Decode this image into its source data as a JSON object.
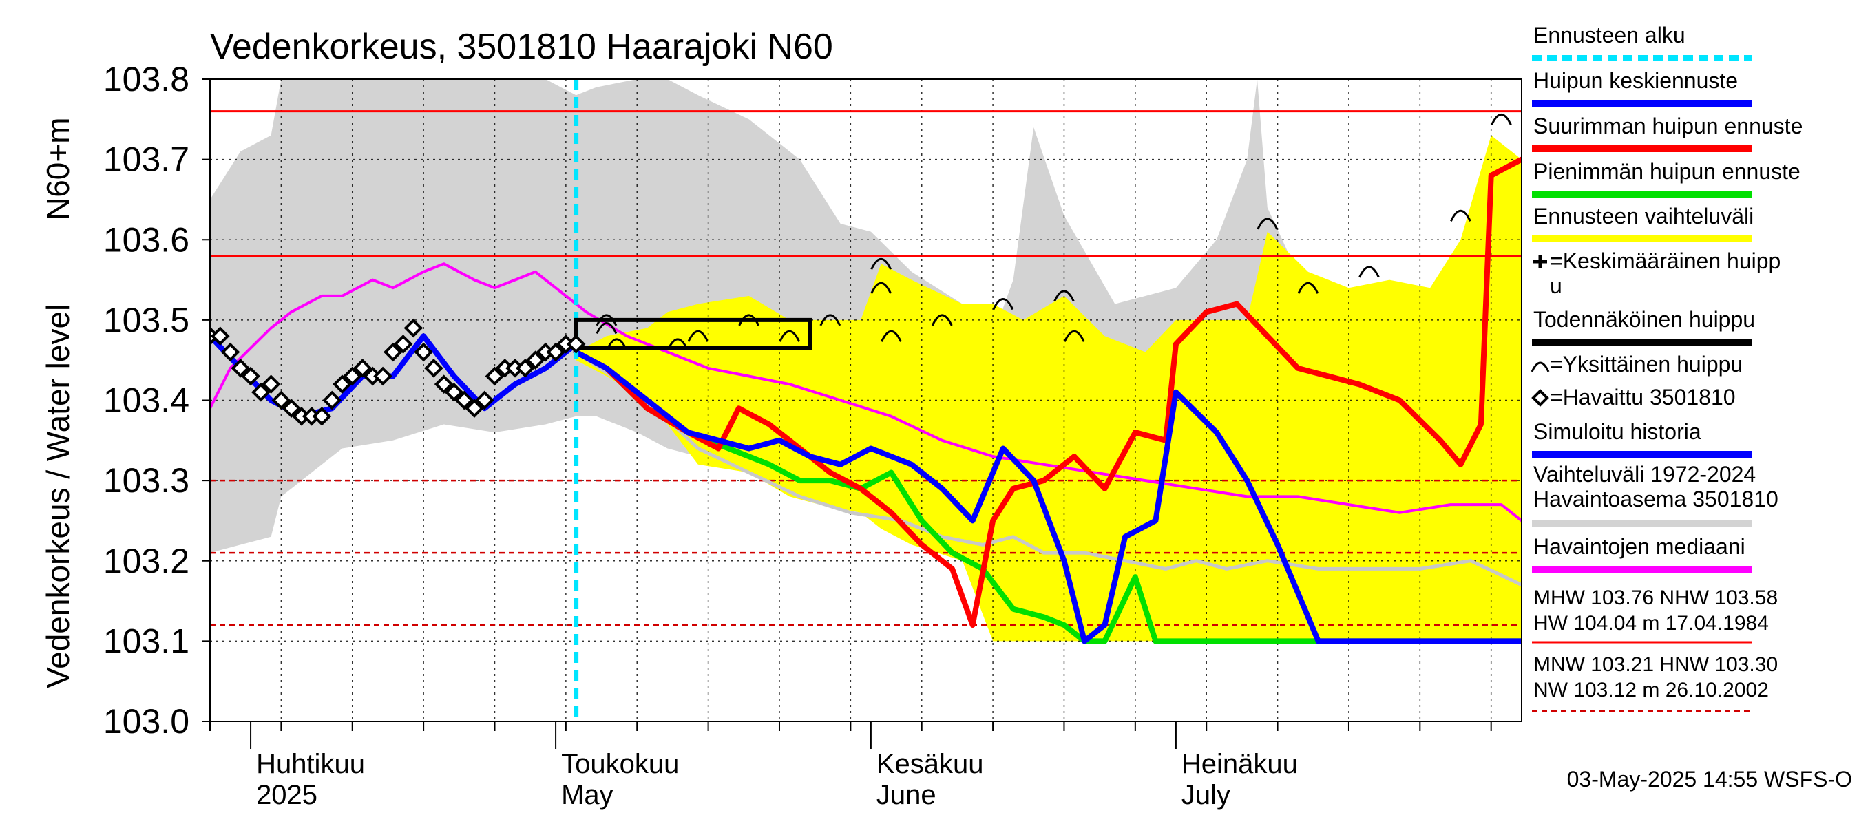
{
  "chart_data": {
    "type": "line",
    "title": "Vedenkorkeus, 3501810 Haarajoki N60",
    "ylabel_left": "Vedenkorkeus / Water level",
    "ylabel_unit": "N60+m",
    "ylim": [
      103.0,
      103.8
    ],
    "yticks": [
      "103.0",
      "103.1",
      "103.2",
      "103.3",
      "103.4",
      "103.5",
      "103.6",
      "103.7",
      "103.8"
    ],
    "xrange": [
      "2025-03-28",
      "2025-08-04"
    ],
    "month_labels": [
      {
        "date": "2025-04-01",
        "fi": "Huhtikuu",
        "en": "2025"
      },
      {
        "date": "2025-05-01",
        "fi": "Toukokuu",
        "en": "May"
      },
      {
        "date": "2025-06-01",
        "fi": "Kesäkuu",
        "en": "June"
      },
      {
        "date": "2025-07-01",
        "fi": "Heinäkuu",
        "en": "July"
      }
    ],
    "forecast_start": "2025-05-03",
    "reference_lines": [
      {
        "name": "MHW",
        "value": 103.76,
        "style": "solid",
        "color": "#ff0000"
      },
      {
        "name": "NHW",
        "value": 103.58,
        "style": "solid",
        "color": "#ff0000"
      },
      {
        "name": "HNW",
        "value": 103.3,
        "style": "dashed",
        "color": "#d00000"
      },
      {
        "name": "MNW",
        "value": 103.21,
        "style": "dashed",
        "color": "#d00000"
      },
      {
        "name": "NW",
        "value": 103.12,
        "style": "dashed",
        "color": "#d00000"
      }
    ],
    "probable_peak_box": {
      "x0": "2025-05-03",
      "x1": "2025-05-26",
      "y0": 103.465,
      "y1": 103.5
    },
    "observed": {
      "name": "Havaittu 3501810",
      "x": [
        "2025-03-28",
        "2025-03-29",
        "2025-03-30",
        "2025-03-31",
        "2025-04-01",
        "2025-04-02",
        "2025-04-03",
        "2025-04-04",
        "2025-04-05",
        "2025-04-06",
        "2025-04-07",
        "2025-04-08",
        "2025-04-09",
        "2025-04-10",
        "2025-04-11",
        "2025-04-12",
        "2025-04-13",
        "2025-04-14",
        "2025-04-15",
        "2025-04-16",
        "2025-04-17",
        "2025-04-18",
        "2025-04-19",
        "2025-04-20",
        "2025-04-21",
        "2025-04-22",
        "2025-04-23",
        "2025-04-24",
        "2025-04-25",
        "2025-04-26",
        "2025-04-27",
        "2025-04-28",
        "2025-04-29",
        "2025-04-30",
        "2025-05-01",
        "2025-05-02",
        "2025-05-03"
      ],
      "y": [
        103.48,
        103.48,
        103.46,
        103.44,
        103.43,
        103.41,
        103.42,
        103.4,
        103.39,
        103.38,
        103.38,
        103.38,
        103.4,
        103.42,
        103.43,
        103.44,
        103.43,
        103.43,
        103.46,
        103.47,
        103.49,
        103.46,
        103.44,
        103.42,
        103.41,
        103.4,
        103.39,
        103.4,
        103.43,
        103.44,
        103.44,
        103.44,
        103.45,
        103.46,
        103.46,
        103.47,
        103.47
      ]
    },
    "peak_marks": {
      "name": "Yksittäinen huippu",
      "x": [
        "2025-05-06",
        "2025-05-06",
        "2025-05-07",
        "2025-05-13",
        "2025-05-15",
        "2025-05-20",
        "2025-05-24",
        "2025-05-28",
        "2025-06-02",
        "2025-06-02",
        "2025-06-03",
        "2025-06-08",
        "2025-06-14",
        "2025-06-20",
        "2025-06-21",
        "2025-07-10",
        "2025-07-14",
        "2025-07-20",
        "2025-07-29",
        "2025-08-02"
      ],
      "y": [
        103.5,
        103.49,
        103.47,
        103.47,
        103.48,
        103.5,
        103.48,
        103.5,
        103.57,
        103.54,
        103.48,
        103.5,
        103.52,
        103.53,
        103.48,
        103.62,
        103.54,
        103.56,
        103.63,
        103.75
      ]
    },
    "series": [
      {
        "name": "Vaihteluväli 1972-2024",
        "kind": "band",
        "color": "#d3d3d3",
        "x": [
          "2025-03-28",
          "2025-03-31",
          "2025-04-03",
          "2025-04-04",
          "2025-04-10",
          "2025-04-15",
          "2025-04-20",
          "2025-04-25",
          "2025-04-30",
          "2025-05-03",
          "2025-05-05",
          "2025-05-09",
          "2025-05-12",
          "2025-05-15",
          "2025-05-20",
          "2025-05-25",
          "2025-05-29",
          "2025-06-01",
          "2025-06-05",
          "2025-06-10",
          "2025-06-13",
          "2025-06-15",
          "2025-06-17",
          "2025-06-20",
          "2025-06-25",
          "2025-07-01",
          "2025-07-05",
          "2025-07-08",
          "2025-07-09",
          "2025-07-10",
          "2025-07-14",
          "2025-07-20",
          "2025-07-25",
          "2025-07-30",
          "2025-08-04"
        ],
        "lower": [
          103.21,
          103.22,
          103.23,
          103.28,
          103.34,
          103.35,
          103.37,
          103.36,
          103.37,
          103.38,
          103.38,
          103.36,
          103.34,
          103.33,
          103.32,
          103.3,
          103.28,
          103.26,
          103.25,
          103.24,
          103.23,
          103.22,
          103.21,
          103.2,
          103.2,
          103.19,
          103.19,
          103.18,
          103.18,
          103.18,
          103.18,
          103.18,
          103.18,
          103.18,
          103.18
        ],
        "upper": [
          103.65,
          103.71,
          103.73,
          103.8,
          103.8,
          103.8,
          103.8,
          103.8,
          103.8,
          103.78,
          103.79,
          103.8,
          103.8,
          103.78,
          103.75,
          103.7,
          103.62,
          103.61,
          103.56,
          103.52,
          103.48,
          103.55,
          103.74,
          103.63,
          103.52,
          103.54,
          103.6,
          103.7,
          103.8,
          103.64,
          103.53,
          103.54,
          103.54,
          103.52,
          103.56
        ]
      },
      {
        "name": "Ennusteen vaihteluväli",
        "kind": "band",
        "color": "#ffff00",
        "x": [
          "2025-05-03",
          "2025-05-06",
          "2025-05-10",
          "2025-05-12",
          "2025-05-15",
          "2025-05-20",
          "2025-05-24",
          "2025-05-27",
          "2025-05-31",
          "2025-06-02",
          "2025-06-05",
          "2025-06-10",
          "2025-06-13",
          "2025-06-16",
          "2025-06-20",
          "2025-06-24",
          "2025-06-28",
          "2025-07-01",
          "2025-07-05",
          "2025-07-08",
          "2025-07-10",
          "2025-07-14",
          "2025-07-18",
          "2025-07-22",
          "2025-07-26",
          "2025-07-29",
          "2025-08-01",
          "2025-08-04"
        ],
        "lower": [
          103.45,
          103.43,
          103.4,
          103.37,
          103.32,
          103.31,
          103.28,
          103.27,
          103.26,
          103.24,
          103.22,
          103.2,
          103.1,
          103.1,
          103.1,
          103.1,
          103.1,
          103.1,
          103.1,
          103.1,
          103.1,
          103.1,
          103.1,
          103.1,
          103.1,
          103.1,
          103.1,
          103.1
        ],
        "upper": [
          103.46,
          103.48,
          103.49,
          103.51,
          103.52,
          103.53,
          103.5,
          103.5,
          103.5,
          103.57,
          103.55,
          103.52,
          103.52,
          103.5,
          103.53,
          103.48,
          103.46,
          103.5,
          103.5,
          103.5,
          103.61,
          103.56,
          103.54,
          103.55,
          103.54,
          103.6,
          103.73,
          103.7
        ]
      },
      {
        "name": "Havaintojen mediaani",
        "kind": "line",
        "color": "#ff00ff",
        "x": [
          "2025-03-28",
          "2025-03-30",
          "2025-04-03",
          "2025-04-05",
          "2025-04-08",
          "2025-04-10",
          "2025-04-13",
          "2025-04-15",
          "2025-04-18",
          "2025-04-20",
          "2025-04-23",
          "2025-04-25",
          "2025-04-27",
          "2025-04-29",
          "2025-05-01",
          "2025-05-04",
          "2025-05-08",
          "2025-05-12",
          "2025-05-16",
          "2025-05-20",
          "2025-05-24",
          "2025-05-29",
          "2025-06-03",
          "2025-06-08",
          "2025-06-13",
          "2025-06-18",
          "2025-06-23",
          "2025-06-28",
          "2025-07-03",
          "2025-07-08",
          "2025-07-13",
          "2025-07-18",
          "2025-07-23",
          "2025-07-28",
          "2025-08-02",
          "2025-08-04"
        ],
        "y": [
          103.39,
          103.44,
          103.49,
          103.51,
          103.53,
          103.53,
          103.55,
          103.54,
          103.56,
          103.57,
          103.55,
          103.54,
          103.55,
          103.56,
          103.54,
          103.51,
          103.48,
          103.46,
          103.44,
          103.43,
          103.42,
          103.4,
          103.38,
          103.35,
          103.33,
          103.32,
          103.31,
          103.3,
          103.29,
          103.28,
          103.28,
          103.27,
          103.26,
          103.27,
          103.27,
          103.25
        ]
      },
      {
        "name": "Havaintoasema 3501810",
        "kind": "line",
        "color": "#c8c8c8",
        "x": [
          "2025-05-03",
          "2025-05-10",
          "2025-05-15",
          "2025-05-20",
          "2025-05-25",
          "2025-05-30",
          "2025-06-04",
          "2025-06-08",
          "2025-06-12",
          "2025-06-15",
          "2025-06-18",
          "2025-06-22",
          "2025-06-26",
          "2025-06-30",
          "2025-07-03",
          "2025-07-06",
          "2025-07-10",
          "2025-07-15",
          "2025-07-20",
          "2025-07-25",
          "2025-07-30",
          "2025-08-04"
        ],
        "y": [
          103.46,
          103.4,
          103.34,
          103.31,
          103.28,
          103.26,
          103.25,
          103.23,
          103.22,
          103.23,
          103.21,
          103.21,
          103.2,
          103.19,
          103.2,
          103.19,
          103.2,
          103.19,
          103.19,
          103.19,
          103.2,
          103.17
        ]
      },
      {
        "name": "Suurimman huipun ennuste",
        "kind": "line",
        "color": "#ff0000",
        "x": [
          "2025-05-03",
          "2025-05-06",
          "2025-05-10",
          "2025-05-14",
          "2025-05-17",
          "2025-05-19",
          "2025-05-22",
          "2025-05-25",
          "2025-05-28",
          "2025-05-31",
          "2025-06-03",
          "2025-06-06",
          "2025-06-09",
          "2025-06-11",
          "2025-06-13",
          "2025-06-15",
          "2025-06-18",
          "2025-06-21",
          "2025-06-24",
          "2025-06-27",
          "2025-06-30",
          "2025-07-01",
          "2025-07-04",
          "2025-07-07",
          "2025-07-10",
          "2025-07-13",
          "2025-07-16",
          "2025-07-19",
          "2025-07-23",
          "2025-07-27",
          "2025-07-29",
          "2025-07-31",
          "2025-08-01",
          "2025-08-04"
        ],
        "y": [
          103.46,
          103.44,
          103.39,
          103.36,
          103.34,
          103.39,
          103.37,
          103.34,
          103.31,
          103.29,
          103.26,
          103.22,
          103.19,
          103.12,
          103.25,
          103.29,
          103.3,
          103.33,
          103.29,
          103.36,
          103.35,
          103.47,
          103.51,
          103.52,
          103.48,
          103.44,
          103.43,
          103.42,
          103.4,
          103.35,
          103.32,
          103.37,
          103.68,
          103.7
        ]
      },
      {
        "name": "Pienimmän huipun ennuste",
        "kind": "line",
        "color": "#00e000",
        "x": [
          "2025-05-03",
          "2025-05-06",
          "2025-05-10",
          "2025-05-14",
          "2025-05-18",
          "2025-05-22",
          "2025-05-25",
          "2025-05-28",
          "2025-05-31",
          "2025-06-03",
          "2025-06-06",
          "2025-06-09",
          "2025-06-12",
          "2025-06-15",
          "2025-06-18",
          "2025-06-20",
          "2025-06-22",
          "2025-06-24",
          "2025-06-27",
          "2025-06-29",
          "2025-07-01",
          "2025-07-05",
          "2025-07-10",
          "2025-07-15",
          "2025-08-04"
        ],
        "y": [
          103.46,
          103.44,
          103.39,
          103.36,
          103.34,
          103.32,
          103.3,
          103.3,
          103.29,
          103.31,
          103.25,
          103.21,
          103.19,
          103.14,
          103.13,
          103.12,
          103.1,
          103.1,
          103.18,
          103.1,
          103.1,
          103.1,
          103.1,
          103.1,
          103.1
        ]
      },
      {
        "name": "Huipun keskiennuste",
        "kind": "line",
        "color": "#0000ff",
        "x": [
          "2025-05-03",
          "2025-05-06",
          "2025-05-10",
          "2025-05-14",
          "2025-05-17",
          "2025-05-20",
          "2025-05-23",
          "2025-05-26",
          "2025-05-29",
          "2025-06-01",
          "2025-06-05",
          "2025-06-08",
          "2025-06-11",
          "2025-06-14",
          "2025-06-17",
          "2025-06-20",
          "2025-06-22",
          "2025-06-24",
          "2025-06-26",
          "2025-06-29",
          "2025-07-01",
          "2025-07-05",
          "2025-07-08",
          "2025-07-11",
          "2025-07-15",
          "2025-08-04"
        ],
        "y": [
          103.46,
          103.44,
          103.4,
          103.36,
          103.35,
          103.34,
          103.35,
          103.33,
          103.32,
          103.34,
          103.32,
          103.29,
          103.25,
          103.34,
          103.3,
          103.2,
          103.1,
          103.12,
          103.23,
          103.25,
          103.41,
          103.36,
          103.3,
          103.22,
          103.1,
          103.1
        ]
      },
      {
        "name": "Simuloitu historia",
        "kind": "line",
        "color": "#0000ff",
        "x": [
          "2025-03-28",
          "2025-03-31",
          "2025-04-03",
          "2025-04-06",
          "2025-04-09",
          "2025-04-12",
          "2025-04-15",
          "2025-04-18",
          "2025-04-21",
          "2025-04-24",
          "2025-04-27",
          "2025-04-30",
          "2025-05-03"
        ],
        "y": [
          103.48,
          103.44,
          103.4,
          103.38,
          103.39,
          103.43,
          103.43,
          103.48,
          103.43,
          103.39,
          103.42,
          103.44,
          103.47
        ]
      }
    ],
    "legend": {
      "placement": "right",
      "items": [
        {
          "label": "Ennusteen alku",
          "color": "#00e5ff",
          "style": "dashed"
        },
        {
          "label": "Huipun keskiennuste",
          "color": "#0000ff",
          "style": "line"
        },
        {
          "label": "Suurimman huipun ennuste",
          "color": "#ff0000",
          "style": "line"
        },
        {
          "label": "Pienimmän huipun ennuste",
          "color": "#00e000",
          "style": "line"
        },
        {
          "label": "Ennusteen vaihteluväli",
          "color": "#ffff00",
          "style": "line"
        },
        {
          "label": "=Keskimääräinen huipp",
          "label2": "u",
          "color": "#000000",
          "style": "plus"
        },
        {
          "label": "Todennäköinen huippu",
          "color": "#000000",
          "style": "line"
        },
        {
          "label": "=Yksittäinen huippu",
          "color": "#000000",
          "style": "arc"
        },
        {
          "label": "=Havaittu 3501810",
          "color": "#000000",
          "style": "diamond"
        },
        {
          "label": "Simuloitu historia",
          "color": "#0000ff",
          "style": "line"
        },
        {
          "label": "Vaihteluväli 1972-2024",
          "label2": " Havaintoasema 3501810",
          "color": "#d3d3d3",
          "style": "line"
        },
        {
          "label": "Havaintojen mediaani",
          "color": "#ff00ff",
          "style": "line"
        }
      ],
      "stats_high": [
        "MHW 103.76 NHW 103.58",
        "HW 104.04 m 17.04.1984"
      ],
      "stats_low": [
        "MNW 103.21 HNW 103.30",
        "NW 103.12 m 26.10.2002"
      ]
    },
    "timestamp": "03-May-2025 14:55 WSFS-O"
  }
}
